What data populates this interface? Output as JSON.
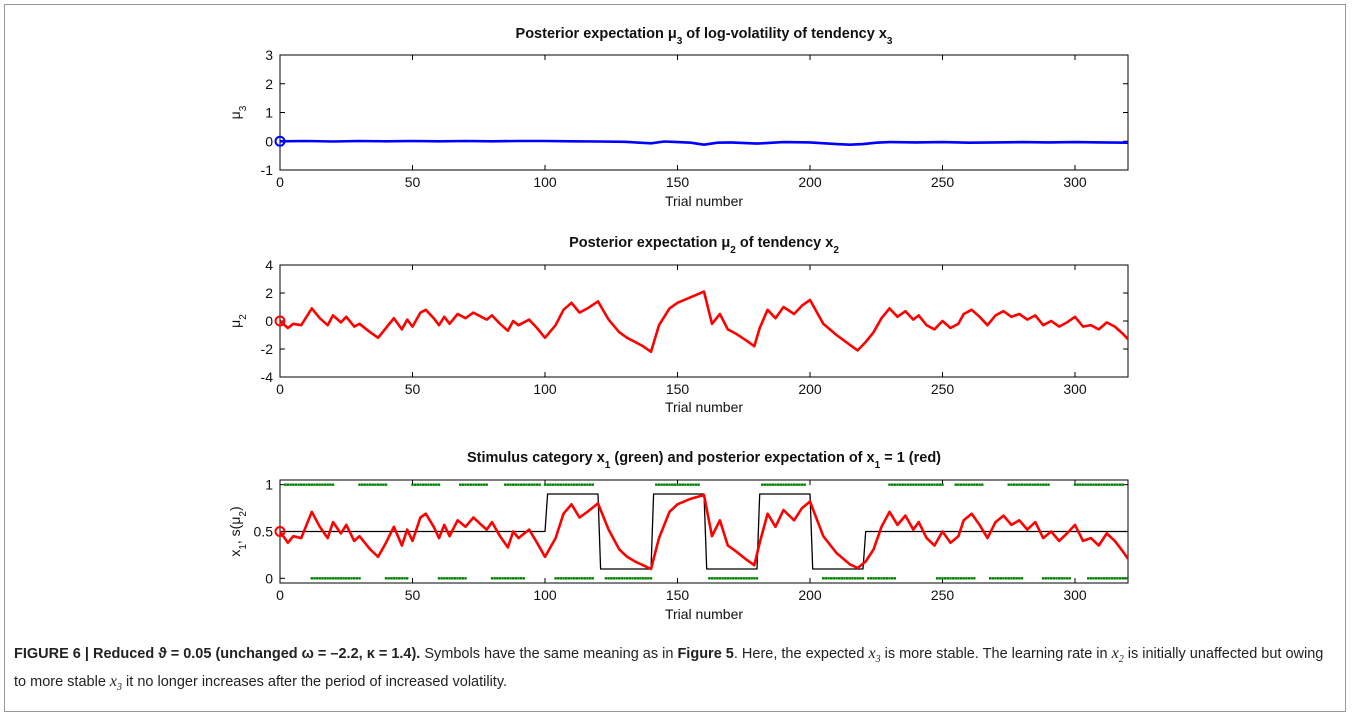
{
  "chart_data": [
    {
      "type": "line",
      "title_parts": [
        "Posterior expectation μ",
        "3",
        " of log-volatility of tendency x",
        "3"
      ],
      "ylabel_parts": [
        "μ",
        "3"
      ],
      "xlabel": "Trial number",
      "xlim": [
        0,
        320
      ],
      "ylim": [
        -1,
        3
      ],
      "xticks": [
        "0",
        "50",
        "100",
        "150",
        "200",
        "250",
        "300"
      ],
      "yticks": [
        "-1",
        "0",
        "1",
        "2",
        "3"
      ],
      "series": [
        {
          "color": "#0000ff",
          "x": [
            0,
            10,
            20,
            30,
            40,
            50,
            60,
            70,
            80,
            90,
            100,
            110,
            120,
            130,
            140,
            145,
            150,
            155,
            160,
            165,
            170,
            180,
            190,
            200,
            210,
            215,
            220,
            225,
            230,
            240,
            250,
            260,
            270,
            280,
            290,
            300,
            310,
            320
          ],
          "y": [
            0,
            0.01,
            -0.01,
            0.01,
            0,
            0.01,
            0,
            0.01,
            0,
            0.01,
            0.01,
            0,
            -0.01,
            -0.02,
            -0.07,
            -0.01,
            -0.03,
            -0.05,
            -0.12,
            -0.05,
            -0.04,
            -0.08,
            -0.03,
            -0.04,
            -0.1,
            -0.12,
            -0.1,
            -0.05,
            -0.03,
            -0.04,
            -0.03,
            -0.05,
            -0.04,
            -0.03,
            -0.04,
            -0.03,
            -0.04,
            -0.05
          ]
        }
      ],
      "start_marker": {
        "x": 0,
        "y": 0,
        "color": "#0000ff"
      }
    },
    {
      "type": "line",
      "title_parts": [
        "Posterior expectation μ",
        "2",
        " of tendency x",
        "2"
      ],
      "ylabel_parts": [
        "μ",
        "2"
      ],
      "xlabel": "Trial number",
      "xlim": [
        0,
        320
      ],
      "ylim": [
        -4,
        4
      ],
      "xticks": [
        "0",
        "50",
        "100",
        "150",
        "200",
        "250",
        "300"
      ],
      "yticks": [
        "-4",
        "-2",
        "0",
        "2",
        "4"
      ],
      "series": [
        {
          "color": "#ff0000",
          "x": [
            0,
            3,
            5,
            8,
            12,
            15,
            18,
            20,
            23,
            25,
            28,
            30,
            34,
            37,
            40,
            43,
            46,
            48,
            50,
            53,
            55,
            58,
            60,
            62,
            64,
            67,
            70,
            73,
            76,
            78,
            80,
            83,
            86,
            88,
            90,
            94,
            97,
            100,
            104,
            107,
            110,
            113,
            116,
            120,
            124,
            128,
            131,
            134,
            137,
            140,
            143,
            147,
            150,
            155,
            160,
            163,
            166,
            169,
            172,
            176,
            179,
            181,
            184,
            187,
            190,
            194,
            197,
            200,
            205,
            210,
            215,
            218,
            221,
            224,
            227,
            230,
            233,
            236,
            239,
            241,
            244,
            247,
            250,
            253,
            256,
            258,
            261,
            264,
            267,
            270,
            273,
            276,
            279,
            282,
            285,
            288,
            291,
            294,
            297,
            300,
            303,
            306,
            309,
            312,
            315,
            318,
            320
          ],
          "y": [
            0,
            -0.5,
            -0.2,
            -0.3,
            0.9,
            0.2,
            -0.3,
            0.4,
            -0.1,
            0.3,
            -0.4,
            -0.2,
            -0.8,
            -1.2,
            -0.5,
            0.2,
            -0.6,
            0.1,
            -0.4,
            0.6,
            0.8,
            0.2,
            -0.3,
            0.3,
            -0.2,
            0.5,
            0.2,
            0.6,
            0.3,
            0.1,
            0.4,
            -0.2,
            -0.7,
            0.0,
            -0.3,
            0.1,
            -0.5,
            -1.2,
            -0.3,
            0.8,
            1.3,
            0.6,
            0.9,
            1.4,
            0.1,
            -0.8,
            -1.2,
            -1.5,
            -1.8,
            -2.2,
            -0.3,
            0.9,
            1.3,
            1.7,
            2.1,
            -0.2,
            0.5,
            -0.6,
            -0.9,
            -1.4,
            -1.8,
            -0.5,
            0.8,
            0.2,
            1.0,
            0.5,
            1.1,
            1.5,
            -0.2,
            -1.0,
            -1.7,
            -2.1,
            -1.5,
            -0.8,
            0.2,
            0.9,
            0.3,
            0.7,
            0.1,
            0.4,
            -0.3,
            -0.6,
            0.0,
            -0.5,
            -0.2,
            0.5,
            0.8,
            0.3,
            -0.3,
            0.4,
            0.7,
            0.3,
            0.5,
            0.1,
            0.4,
            -0.3,
            0.0,
            -0.4,
            -0.1,
            0.3,
            -0.4,
            -0.3,
            -0.6,
            -0.1,
            -0.4,
            -0.9,
            -1.3
          ]
        }
      ],
      "start_marker": {
        "x": 0,
        "y": 0,
        "color": "#ff0000"
      }
    },
    {
      "type": "line",
      "title_parts": [
        "Stimulus category x",
        "1",
        " (green) and posterior expectation of x",
        "1",
        " = 1 (red)"
      ],
      "ylabel_parts": [
        "x",
        "1",
        ", s(μ",
        "2",
        ")"
      ],
      "xlabel": "Trial number",
      "xlim": [
        0,
        320
      ],
      "ylim": [
        -0.05,
        1.05
      ],
      "xticks": [
        "0",
        "50",
        "100",
        "150",
        "200",
        "250",
        "300"
      ],
      "yticks": [
        "0",
        "0.5",
        "1"
      ],
      "series": [
        {
          "color": "#ff0000",
          "x": [
            0,
            3,
            5,
            8,
            12,
            15,
            18,
            20,
            23,
            25,
            28,
            30,
            34,
            37,
            40,
            43,
            46,
            48,
            50,
            53,
            55,
            58,
            60,
            62,
            64,
            67,
            70,
            73,
            76,
            78,
            80,
            83,
            86,
            88,
            90,
            94,
            97,
            100,
            104,
            107,
            110,
            113,
            116,
            120,
            124,
            128,
            131,
            134,
            137,
            140,
            143,
            147,
            150,
            155,
            160,
            163,
            166,
            169,
            172,
            176,
            179,
            181,
            184,
            187,
            190,
            194,
            197,
            200,
            205,
            210,
            215,
            218,
            221,
            224,
            227,
            230,
            233,
            236,
            239,
            241,
            244,
            247,
            250,
            253,
            256,
            258,
            261,
            264,
            267,
            270,
            273,
            276,
            279,
            282,
            285,
            288,
            291,
            294,
            297,
            300,
            303,
            306,
            309,
            312,
            315,
            318,
            320
          ],
          "y": [
            0.5,
            0.38,
            0.45,
            0.43,
            0.71,
            0.55,
            0.43,
            0.6,
            0.48,
            0.57,
            0.4,
            0.45,
            0.31,
            0.23,
            0.38,
            0.55,
            0.35,
            0.52,
            0.4,
            0.65,
            0.69,
            0.55,
            0.43,
            0.57,
            0.45,
            0.62,
            0.55,
            0.65,
            0.57,
            0.52,
            0.6,
            0.45,
            0.33,
            0.5,
            0.43,
            0.52,
            0.38,
            0.23,
            0.43,
            0.69,
            0.79,
            0.65,
            0.71,
            0.8,
            0.52,
            0.31,
            0.23,
            0.18,
            0.14,
            0.1,
            0.43,
            0.71,
            0.79,
            0.85,
            0.89,
            0.45,
            0.62,
            0.35,
            0.29,
            0.2,
            0.14,
            0.38,
            0.69,
            0.55,
            0.73,
            0.62,
            0.75,
            0.82,
            0.45,
            0.27,
            0.15,
            0.11,
            0.18,
            0.31,
            0.55,
            0.71,
            0.57,
            0.67,
            0.52,
            0.6,
            0.43,
            0.35,
            0.5,
            0.38,
            0.45,
            0.62,
            0.69,
            0.57,
            0.43,
            0.6,
            0.67,
            0.57,
            0.62,
            0.52,
            0.6,
            0.43,
            0.5,
            0.4,
            0.48,
            0.57,
            0.4,
            0.43,
            0.35,
            0.48,
            0.4,
            0.29,
            0.21
          ]
        },
        {
          "color": "#000000",
          "x": [
            0,
            100,
            101,
            120,
            121,
            140,
            141,
            160,
            161,
            180,
            181,
            200,
            201,
            220,
            221,
            320
          ],
          "y": [
            0.5,
            0.5,
            0.9,
            0.9,
            0.1,
            0.1,
            0.9,
            0.9,
            0.1,
            0.1,
            0.9,
            0.9,
            0.1,
            0.1,
            0.5,
            0.5
          ]
        }
      ],
      "green_outcomes": {
        "color": "#008000",
        "top": [
          [
            2,
            20
          ],
          [
            30,
            40
          ],
          [
            50,
            60
          ],
          [
            68,
            78
          ],
          [
            85,
            98
          ],
          [
            100,
            118
          ],
          [
            142,
            158
          ],
          [
            182,
            198
          ],
          [
            230,
            250
          ],
          [
            255,
            265
          ],
          [
            275,
            290
          ],
          [
            300,
            318
          ]
        ],
        "bottom": [
          [
            12,
            30
          ],
          [
            40,
            48
          ],
          [
            60,
            70
          ],
          [
            80,
            92
          ],
          [
            104,
            118
          ],
          [
            123,
            140
          ],
          [
            162,
            180
          ],
          [
            205,
            220
          ],
          [
            222,
            232
          ],
          [
            248,
            262
          ],
          [
            268,
            280
          ],
          [
            288,
            298
          ],
          [
            305,
            320
          ]
        ]
      },
      "start_marker": {
        "x": 0,
        "y": 0.5,
        "color": "#ff0000"
      }
    }
  ],
  "caption": {
    "lead": "FIGURE 6 | Reduced ϑ = 0.05 (unchanged ω = –2.2, κ = 1.4).",
    "t1": " Symbols have the same meaning as in ",
    "ref": "Figure 5",
    "t2": ". Here, the expected ",
    "var_x": "x",
    "sub3": "3",
    "t3": " is more stable. The learning rate in ",
    "sub2": "2",
    "t4": " is initially unaffected but owing to more stable ",
    "t5": " it no longer increases after the period of increased volatility."
  }
}
